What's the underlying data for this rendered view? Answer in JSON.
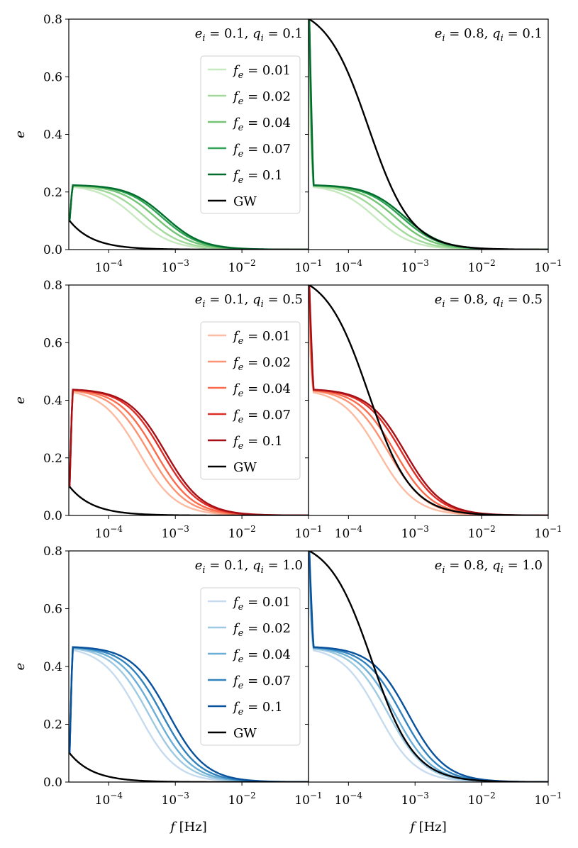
{
  "figure": {
    "ylabel": "e",
    "xlabel": "f [Hz]",
    "xlabel_italic": "f",
    "xlabel_unit": "[Hz]",
    "yticks": [
      "0.0",
      "0.2",
      "0.4",
      "0.6",
      "0.8"
    ],
    "xticks": [
      {
        "base": "10",
        "exp": "−4",
        "value": -4
      },
      {
        "base": "10",
        "exp": "−3",
        "value": -3
      },
      {
        "base": "10",
        "exp": "−2",
        "value": -2
      },
      {
        "base": "10",
        "exp": "−1",
        "value": -1
      }
    ],
    "legend_labels": [
      "f_e = 0.01",
      "f_e = 0.02",
      "f_e = 0.04",
      "f_e = 0.07",
      "f_e = 0.1",
      "GW"
    ],
    "legend_fe_values": [
      "0.01",
      "0.02",
      "0.04",
      "0.07",
      "0.1"
    ],
    "legend_gw": "GW",
    "palettes": {
      "green": [
        "#c7e9c0",
        "#a1d99b",
        "#74c476",
        "#31a354",
        "#006d2c"
      ],
      "red": [
        "#fcbba1",
        "#fc9272",
        "#fb6a4a",
        "#de2d26",
        "#a50f15"
      ],
      "blue": [
        "#c6dbef",
        "#9ecae1",
        "#6baed6",
        "#3182bd",
        "#08519c"
      ],
      "gw": "#000000"
    }
  },
  "chart_data": [
    {
      "type": "line",
      "row": 0,
      "col": 0,
      "title": "e_i = 0.1, q_i = 0.1",
      "ei": "0.1",
      "qi": "0.1",
      "palette": "green",
      "legend": true,
      "xscale": "log",
      "xlim": [
        -4.6,
        -1
      ],
      "ylim": [
        0,
        0.8
      ],
      "xlabel": "",
      "ylabel": "e",
      "plateau": 0.225,
      "x_half": [
        -3.6,
        -3.45,
        -3.3,
        -3.2,
        -3.15
      ],
      "gw_start": 0.1
    },
    {
      "type": "line",
      "row": 0,
      "col": 1,
      "title": "e_i = 0.8, q_i = 0.1",
      "ei": "0.8",
      "qi": "0.1",
      "palette": "green",
      "legend": false,
      "xscale": "log",
      "xlim": [
        -4.6,
        -1
      ],
      "ylim": [
        0,
        0.8
      ],
      "xlabel": "",
      "ylabel": "",
      "plateau": 0.225,
      "x_half": [
        -3.6,
        -3.45,
        -3.3,
        -3.2,
        -3.15
      ],
      "gw_start": 0.8,
      "gw_mid": -3.7
    },
    {
      "type": "line",
      "row": 1,
      "col": 0,
      "title": "e_i = 0.1, q_i = 0.5",
      "ei": "0.1",
      "qi": "0.5",
      "palette": "red",
      "legend": true,
      "xscale": "log",
      "xlim": [
        -4.6,
        -1
      ],
      "ylim": [
        0,
        0.8
      ],
      "xlabel": "",
      "ylabel": "e",
      "plateau": 0.44,
      "x_half": [
        -3.55,
        -3.4,
        -3.3,
        -3.2,
        -3.15
      ],
      "gw_start": 0.1
    },
    {
      "type": "line",
      "row": 1,
      "col": 1,
      "title": "e_i = 0.8, q_i = 0.5",
      "ei": "0.8",
      "qi": "0.5",
      "palette": "red",
      "legend": false,
      "xscale": "log",
      "xlim": [
        -4.6,
        -1
      ],
      "ylim": [
        0,
        0.8
      ],
      "xlabel": "",
      "ylabel": "",
      "plateau": 0.44,
      "x_half": [
        -3.55,
        -3.4,
        -3.3,
        -3.2,
        -3.15
      ],
      "gw_start": 0.8,
      "gw_mid": -3.7
    },
    {
      "type": "line",
      "row": 2,
      "col": 0,
      "title": "e_i = 0.1, q_i = 1.0",
      "ei": "0.1",
      "qi": "1.0",
      "palette": "blue",
      "legend": true,
      "xscale": "log",
      "xlim": [
        -4.6,
        -1
      ],
      "ylim": [
        0,
        0.8
      ],
      "xlabel": "f [Hz]",
      "ylabel": "e",
      "plateau": 0.47,
      "x_half": [
        -3.55,
        -3.4,
        -3.3,
        -3.2,
        -3.1
      ],
      "gw_start": 0.1
    },
    {
      "type": "line",
      "row": 2,
      "col": 1,
      "title": "e_i = 0.8, q_i = 1.0",
      "ei": "0.8",
      "qi": "1.0",
      "palette": "blue",
      "legend": false,
      "xscale": "log",
      "xlim": [
        -4.6,
        -1
      ],
      "ylim": [
        0,
        0.8
      ],
      "xlabel": "f [Hz]",
      "ylabel": "",
      "plateau": 0.47,
      "x_half": [
        -3.55,
        -3.4,
        -3.3,
        -3.2,
        -3.1
      ],
      "gw_start": 0.8,
      "gw_mid": -3.65
    }
  ]
}
